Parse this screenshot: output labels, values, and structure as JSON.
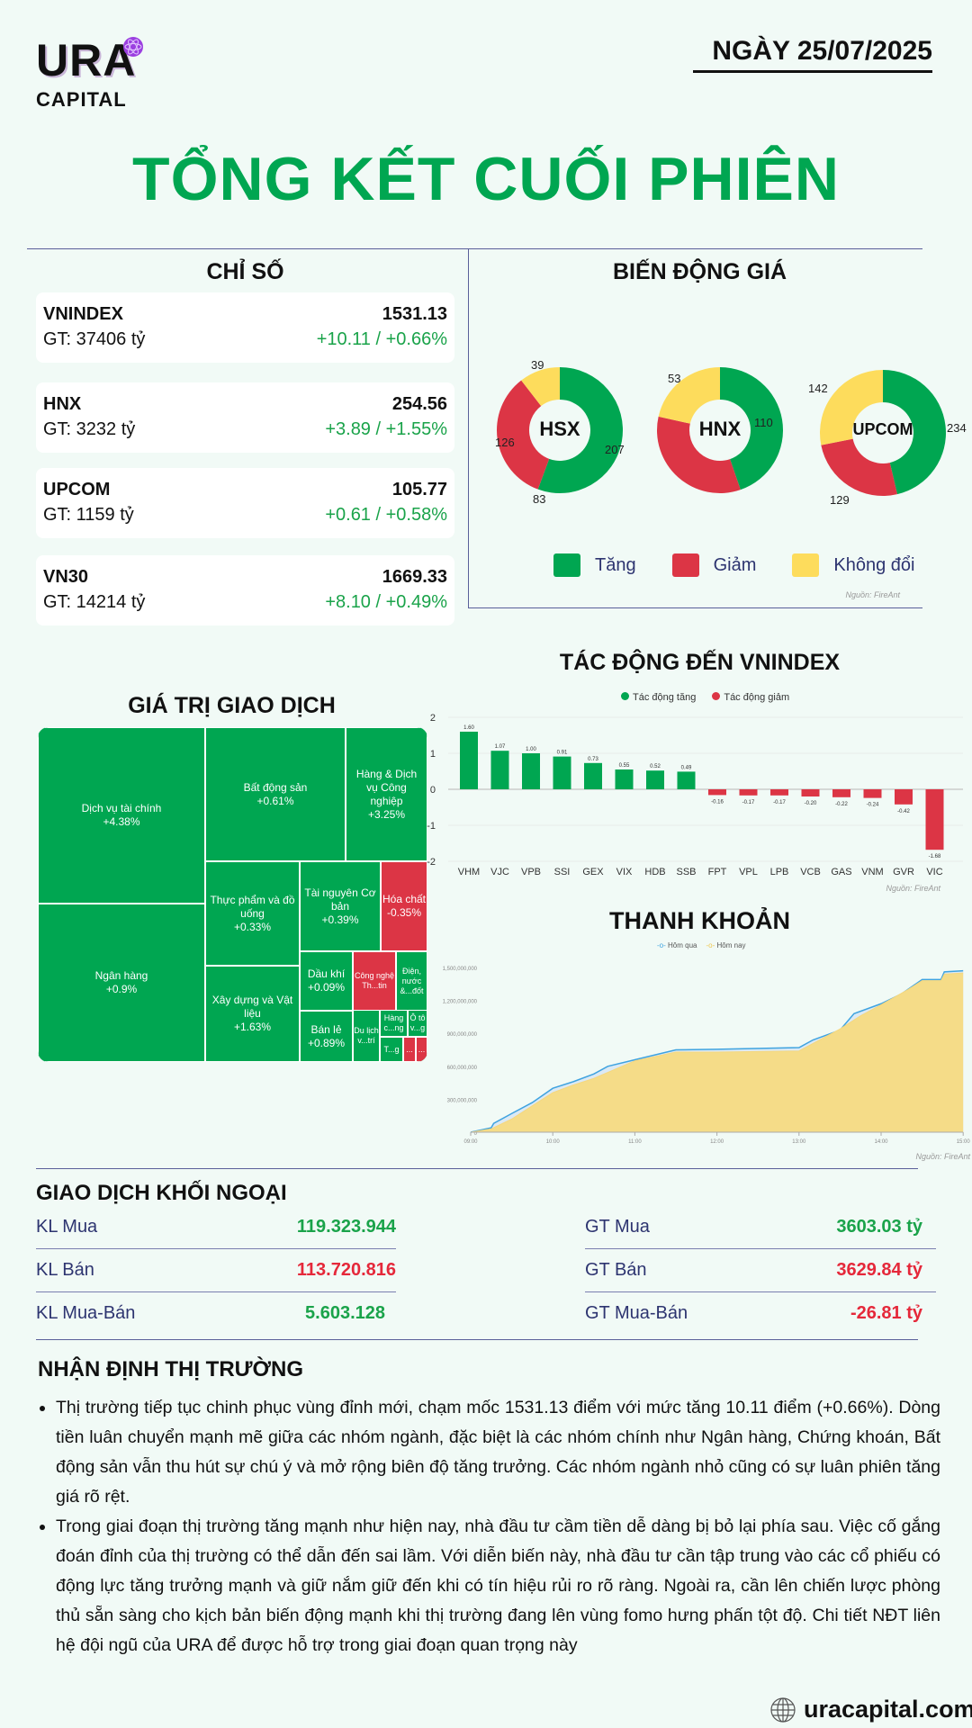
{
  "header": {
    "logo_main": "URA",
    "logo_sub": "CAPITAL",
    "date": "NGÀY 25/07/2025",
    "title": "TỔNG KẾT CUỐI PHIÊN"
  },
  "indices": {
    "heading": "CHỈ SỐ",
    "items": [
      {
        "name": "VNINDEX",
        "value": "1531.13",
        "gt": "GT: 37406 tỷ",
        "change": "+10.11 / +0.66%"
      },
      {
        "name": "HNX",
        "value": "254.56",
        "gt": "GT: 3232 tỷ",
        "change": "+3.89 / +1.55%"
      },
      {
        "name": "UPCOM",
        "value": "105.77",
        "gt": "GT: 1159 tỷ",
        "change": "+0.61 / +0.58%"
      },
      {
        "name": "VN30",
        "value": "1669.33",
        "gt": "GT: 14214 tỷ",
        "change": "+8.10 / +0.49%"
      }
    ]
  },
  "price_move": {
    "heading": "BIẾN ĐỘNG GIÁ",
    "colors": {
      "up": "#00a651",
      "down": "#dc3545",
      "flat": "#fddc5c"
    },
    "exchanges": [
      {
        "name": "HSX",
        "up": 207,
        "down": 126,
        "flat": 39
      },
      {
        "name": "HNX",
        "up": 110,
        "down": 83,
        "flat": 53
      },
      {
        "name": "UPCOM",
        "up": 234,
        "down": 129,
        "flat": 142
      }
    ],
    "legend": {
      "up": "Tăng",
      "down": "Giảm",
      "flat": "Không đổi"
    },
    "source": "Nguồn: FireAnt"
  },
  "treemap": {
    "heading": "GIÁ TRỊ GIAO DỊCH",
    "cells": [
      {
        "label": "Dịch vụ tài chính",
        "pct": "+4.38%"
      },
      {
        "label": "Ngân hàng",
        "pct": "+0.9%"
      },
      {
        "label": "Bất động sản",
        "pct": "+0.61%"
      },
      {
        "label": "Hàng & Dịch vụ Công nghiệp",
        "pct": "+3.25%"
      },
      {
        "label": "Thực phẩm và đồ uống",
        "pct": "+0.33%"
      },
      {
        "label": "Xây dựng và Vật liệu",
        "pct": "+1.63%"
      },
      {
        "label": "Tài nguyên Cơ bản",
        "pct": "+0.39%"
      },
      {
        "label": "Hóa chất",
        "pct": "-0.35%"
      },
      {
        "label": "Dầu khí",
        "pct": "+0.09%"
      },
      {
        "label": "Công nghệ Th...tin",
        "pct": ""
      },
      {
        "label": "Điện, nước &...đốt",
        "pct": ""
      },
      {
        "label": "Bán lẻ",
        "pct": "+0.89%"
      },
      {
        "label": "Du lịch v...trí",
        "pct": ""
      },
      {
        "label": "Hàng c...ng",
        "pct": ""
      },
      {
        "label": "Ô tô v...g",
        "pct": ""
      },
      {
        "label": "T...g",
        "pct": ""
      },
      {
        "label": "...",
        "pct": ""
      },
      {
        "label": "...",
        "pct": ""
      }
    ]
  },
  "chart_data": [
    {
      "type": "bar",
      "title": "TÁC ĐỘNG ĐẾN VNINDEX",
      "categories": [
        "VHM",
        "VJC",
        "VPB",
        "SSI",
        "GEX",
        "VIX",
        "HDB",
        "SSB",
        "FPT",
        "VPL",
        "LPB",
        "VCB",
        "GAS",
        "VNM",
        "GVR",
        "VIC"
      ],
      "values": [
        1.6,
        1.07,
        1.0,
        0.91,
        0.73,
        0.55,
        0.52,
        0.49,
        -0.16,
        -0.17,
        -0.17,
        -0.2,
        -0.22,
        -0.24,
        -0.42,
        -1.68
      ],
      "value_labels": [
        "1.60",
        "1.07",
        "1.00",
        "0.91",
        "0.73",
        "0.55",
        "0.52",
        "0.49",
        "-0.16",
        "-0.17",
        "-0.17",
        "-0.20",
        "-0.22",
        "-0.24",
        "-0.42",
        "-1.68"
      ],
      "legend": [
        "Tác động tăng",
        "Tác động giảm"
      ],
      "yticks": [
        "2",
        "1",
        "0",
        "-1",
        "-2"
      ],
      "ylim": [
        -2,
        2
      ],
      "colors": {
        "pos": "#00a651",
        "neg": "#dc3545"
      },
      "source": "Nguồn: FireAnt"
    },
    {
      "type": "area",
      "title": "THANH KHOẢN",
      "legend": [
        "Hôm qua",
        "Hôm nay"
      ],
      "xticks": [
        "09:00",
        "10:00",
        "11:00",
        "12:00",
        "13:00",
        "14:00",
        "15:00"
      ],
      "yticks": [
        "1,500,000,000",
        "1,200,000,000",
        "900,000,000",
        "600,000,000",
        "300,000,000",
        "0"
      ],
      "ylim": [
        0,
        1500000000
      ],
      "series": [
        {
          "name": "Hôm qua",
          "color": "#3fa3e0",
          "x": [
            9,
            9.25,
            9.28,
            9.5,
            9.75,
            10,
            10.25,
            10.5,
            10.67,
            11,
            11.5,
            12,
            13,
            13.17,
            13.5,
            13.67,
            14,
            14.25,
            14.5,
            14.73,
            14.77,
            15
          ],
          "y": [
            0,
            40000000,
            80000000,
            170000000,
            270000000,
            400000000,
            460000000,
            530000000,
            600000000,
            660000000,
            750000000,
            755000000,
            770000000,
            840000000,
            930000000,
            1080000000,
            1170000000,
            1260000000,
            1390000000,
            1390000000,
            1460000000,
            1470000000
          ]
        },
        {
          "name": "Hôm nay",
          "color": "#f5d77e",
          "x": [
            9,
            9.25,
            9.5,
            9.75,
            10,
            10.25,
            10.5,
            10.75,
            11,
            11.5,
            12,
            13,
            13.5,
            13.75,
            14,
            14.33,
            14.5,
            14.73,
            14.77,
            15
          ],
          "y": [
            0,
            30000000,
            120000000,
            240000000,
            360000000,
            430000000,
            490000000,
            570000000,
            650000000,
            730000000,
            730000000,
            740000000,
            940000000,
            1060000000,
            1160000000,
            1300000000,
            1380000000,
            1380000000,
            1440000000,
            1450000000
          ]
        }
      ],
      "source": "Nguồn: FireAnt"
    }
  ],
  "foreign": {
    "heading": "GIAO DỊCH KHỐI NGOẠI",
    "left": [
      {
        "label": "KL Mua",
        "value": "119.323.944"
      },
      {
        "label": "KL Bán",
        "value": "113.720.816"
      },
      {
        "label": "KL Mua-Bán",
        "value": "5.603.128"
      }
    ],
    "right": [
      {
        "label": "GT Mua",
        "value": "3603.03 tỷ"
      },
      {
        "label": "GT Bán",
        "value": "3629.84 tỷ"
      },
      {
        "label": "GT Mua-Bán",
        "value": "-26.81 tỷ"
      }
    ]
  },
  "outlook": {
    "heading": "NHẬN ĐỊNH THỊ TRƯỜNG",
    "bullets": [
      "Thị trường tiếp tục chinh phục vùng đỉnh mới, chạm mốc 1531.13 điểm với mức tăng 10.11 điểm (+0.66%). Dòng tiền luân chuyển mạnh mẽ giữa các nhóm ngành, đặc biệt là các nhóm chính như Ngân hàng, Chứng khoán, Bất động sản vẫn thu hút sự chú ý và mở rộng biên độ tăng trưởng. Các nhóm ngành nhỏ cũng có sự luân phiên tăng giá rõ rệt.",
      "Trong giai đoạn thị trường tăng mạnh như hiện nay, nhà đầu tư cầm tiền dễ dàng bị bỏ lại phía sau. Việc cố gắng đoán đỉnh của thị trường có thể dẫn đến sai lầm. Với diễn biến này, nhà đầu tư cần tập trung vào các cổ phiếu có động lực tăng trưởng mạnh và giữ nắm giữ đến khi có tín hiệu rủi ro rõ ràng. Ngoài ra, cần lên chiến lược phòng thủ sẵn sàng cho kịch bản biến động mạnh khi thị trường đang lên vùng fomo hưng phấn tột độ. Chi tiết NĐT liên hệ đội ngũ của URA để được hỗ trợ trong giai đoạn quan trọng này"
    ]
  },
  "footer": {
    "website": "uracapital.com"
  }
}
